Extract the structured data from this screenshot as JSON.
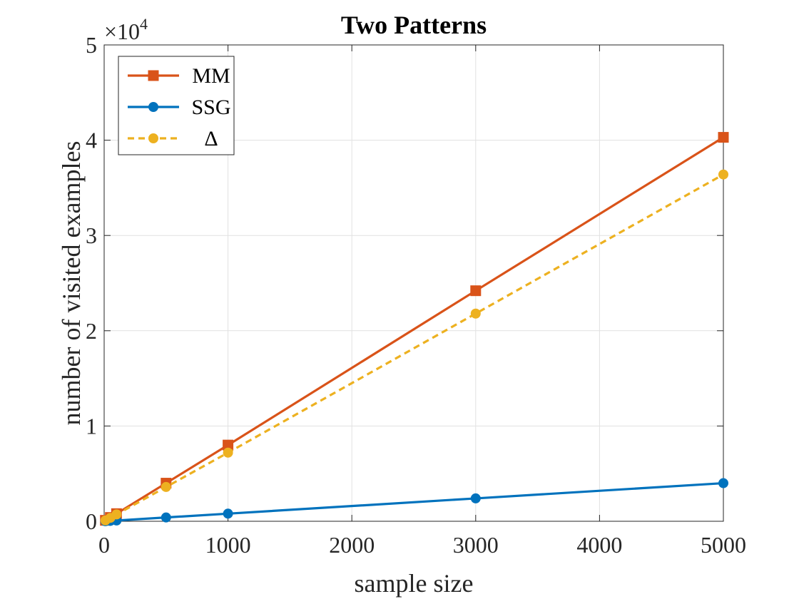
{
  "chart_data": {
    "type": "line",
    "title": "Two Patterns",
    "xlabel": "sample size",
    "ylabel": "number of visited examples",
    "xlim": [
      0,
      5000
    ],
    "ylim": [
      0,
      50000
    ],
    "xticks": [
      0,
      1000,
      2000,
      3000,
      4000,
      5000
    ],
    "yticks": [
      0,
      10000,
      20000,
      30000,
      40000,
      50000
    ],
    "ytick_labels": [
      "0",
      "1",
      "2",
      "3",
      "4",
      "5"
    ],
    "y_exponent_prefix": "×10",
    "y_exponent_power": "4",
    "grid": true,
    "box": true,
    "legend_location": "top-left",
    "series": [
      {
        "name": "MM",
        "color": "#D95319",
        "line_style": "solid",
        "marker": "square",
        "x": [
          10,
          50,
          100,
          500,
          1000,
          3000,
          5000
        ],
        "y": [
          100,
          400,
          800,
          4000,
          8000,
          24200,
          40300
        ]
      },
      {
        "name": "SSG",
        "color": "#0072BD",
        "line_style": "solid",
        "marker": "circle",
        "x": [
          10,
          50,
          100,
          500,
          1000,
          3000,
          5000
        ],
        "y": [
          10,
          40,
          80,
          400,
          800,
          2400,
          4000
        ]
      },
      {
        "name": "Δ",
        "color": "#EDB120",
        "line_style": "dashed",
        "marker": "circle",
        "x": [
          10,
          50,
          100,
          500,
          1000,
          3000,
          5000
        ],
        "y": [
          90,
          360,
          720,
          3600,
          7200,
          21800,
          36400
        ]
      }
    ]
  }
}
